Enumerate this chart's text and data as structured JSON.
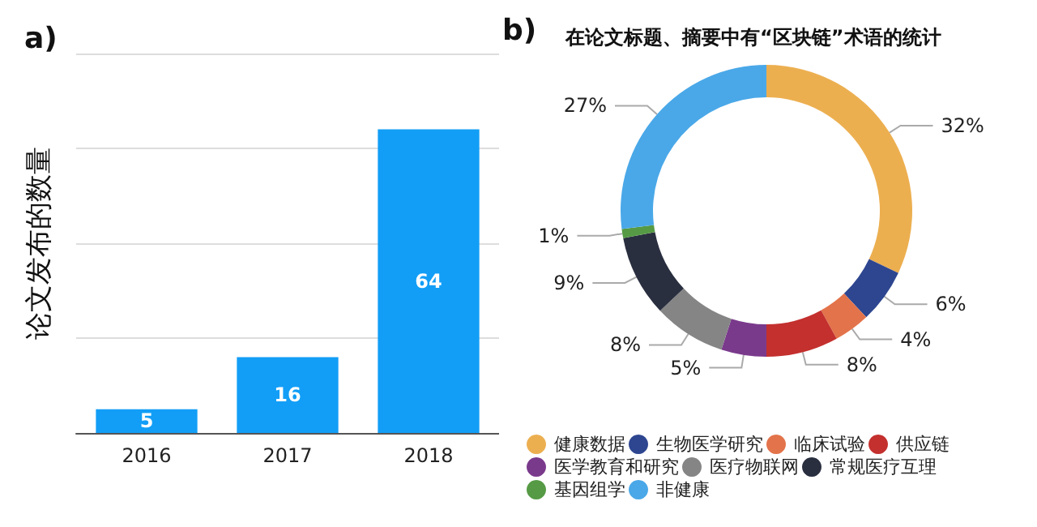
{
  "chart_data": [
    {
      "type": "bar",
      "title": "a)",
      "ylabel": "论文发布的数量",
      "categories": [
        "2016",
        "2017",
        "2018"
      ],
      "values": [
        5,
        16,
        64
      ],
      "color": "#129ef6",
      "data_labels": true,
      "grid": "y",
      "tick_labels": "x",
      "legend": false
    },
    {
      "type": "donut",
      "title": "在论文标题、摘要中有“区块链”术语的统计",
      "annotations": [
        "b)"
      ],
      "categories": [
        "健康数据",
        "生物医学研究",
        "临床试验",
        "供应链",
        "医学教育和研究",
        "医疗物联网",
        "常规医疗互理",
        "基因组学",
        "非健康"
      ],
      "values": [
        32,
        6,
        4,
        8,
        5,
        8,
        9,
        1,
        27
      ],
      "value_labels": [
        "32%",
        "6%",
        "4%",
        "8%",
        "5%",
        "8%",
        "9%",
        "1%",
        "27%"
      ],
      "colors": [
        "#ecaf50",
        "#2e4690",
        "#e3734a",
        "#c3302e",
        "#7a3a8c",
        "#858585",
        "#2a2f40",
        "#569a45",
        "#4aa8e8"
      ],
      "legend": "bottom"
    }
  ]
}
